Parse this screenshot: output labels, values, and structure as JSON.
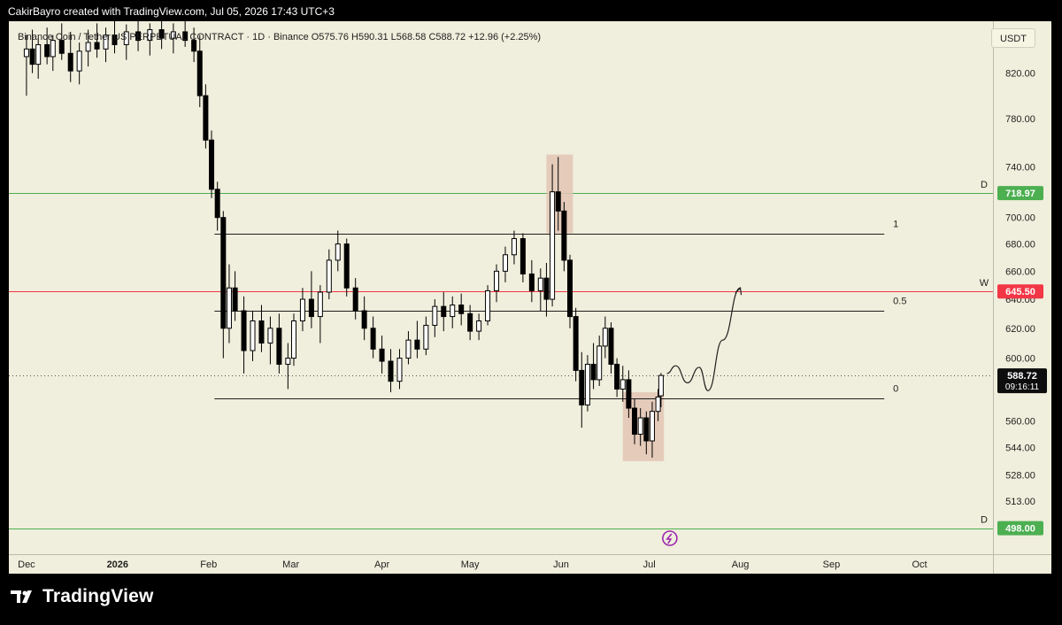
{
  "header": {
    "author_line": "CakirBayro created with TradingView.com, Jul 05, 2026 17:43 UTC+3"
  },
  "symbol_info": "Binance Coin / Tether US PERPETUAL CONTRACT · 1D · Binance  O575.76  H590.31  L568.58  C588.72  +12.96 (+2.25%)",
  "currency_button": "USDT",
  "footer": {
    "logo_text": "TradingView"
  },
  "colors": {
    "background": "#f0eedc",
    "candles": "#000000",
    "green_level": "#4caf50",
    "red_level": "#f23645",
    "highlight_box": "#e3c4b4",
    "emoji_purple": "#9c27b0"
  },
  "chart_data": {
    "type": "candlestick",
    "symbol": "Binance Coin / Tether US PERPETUAL CONTRACT",
    "interval": "1D",
    "exchange": "Binance",
    "ohlc_last": {
      "open": 575.76,
      "high": 590.31,
      "low": 568.58,
      "close": 588.72,
      "change": 12.96,
      "change_pct": "+2.25%"
    },
    "y_axis": {
      "scale": "log",
      "ticks": [
        "820.00",
        "780.00",
        "740.00",
        "700.00",
        "680.00",
        "660.00",
        "640.00",
        "620.00",
        "600.00",
        "560.00",
        "544.00",
        "528.00",
        "513.00"
      ],
      "range": [
        484,
        868
      ]
    },
    "x_axis": {
      "ticks": [
        "Dec",
        "2026",
        "Feb",
        "Mar",
        "Apr",
        "May",
        "Jun",
        "Jul",
        "Aug",
        "Sep",
        "Oct"
      ],
      "range": [
        "2025-11-25",
        "2026-10-26"
      ]
    },
    "price_labels": [
      {
        "label": "D",
        "value": 718.97,
        "text": "718.97",
        "color": "#4caf50"
      },
      {
        "label": "W",
        "value": 645.5,
        "text": "645.50",
        "color": "#f23645"
      },
      {
        "label": "D",
        "value": 498.0,
        "text": "498.00",
        "color": "#4caf50"
      }
    ],
    "last_price": {
      "value": 588.72,
      "text": "588.72",
      "countdown": "09:16:11"
    },
    "fib_levels": [
      {
        "label": "1",
        "value": 688
      },
      {
        "label": "0.5",
        "value": 632
      },
      {
        "label": "0",
        "value": 574
      }
    ],
    "fib_range": [
      "2026-02-03",
      "2026-09-19"
    ],
    "highlight_boxes": [
      {
        "from": "2026-05-27",
        "to": "2026-06-05",
        "low": 688,
        "high": 750
      },
      {
        "from": "2026-06-22",
        "to": "2026-07-06",
        "low": 536,
        "high": 578
      }
    ],
    "projection": [
      [
        "2026-07-07",
        590
      ],
      [
        "2026-07-10",
        595
      ],
      [
        "2026-07-14",
        584
      ],
      [
        "2026-07-18",
        594
      ],
      [
        "2026-07-21",
        579
      ],
      [
        "2026-07-26",
        612
      ],
      [
        "2026-08-01",
        648
      ]
    ],
    "candles": [
      {
        "x": "2025-12-01",
        "o": 835,
        "h": 855,
        "l": 800,
        "c": 842
      },
      {
        "x": "2025-12-03",
        "o": 842,
        "h": 860,
        "l": 820,
        "c": 828
      },
      {
        "x": "2025-12-05",
        "o": 828,
        "h": 852,
        "l": 815,
        "c": 846
      },
      {
        "x": "2025-12-08",
        "o": 846,
        "h": 862,
        "l": 828,
        "c": 835
      },
      {
        "x": "2025-12-10",
        "o": 835,
        "h": 855,
        "l": 822,
        "c": 850
      },
      {
        "x": "2025-12-13",
        "o": 850,
        "h": 866,
        "l": 832,
        "c": 838
      },
      {
        "x": "2025-12-16",
        "o": 838,
        "h": 858,
        "l": 812,
        "c": 822
      },
      {
        "x": "2025-12-19",
        "o": 822,
        "h": 848,
        "l": 810,
        "c": 840
      },
      {
        "x": "2025-12-22",
        "o": 840,
        "h": 860,
        "l": 826,
        "c": 848
      },
      {
        "x": "2025-12-25",
        "o": 848,
        "h": 866,
        "l": 834,
        "c": 842
      },
      {
        "x": "2025-12-28",
        "o": 842,
        "h": 862,
        "l": 830,
        "c": 855
      },
      {
        "x": "2025-12-31",
        "o": 855,
        "h": 868,
        "l": 838,
        "c": 846
      },
      {
        "x": "2026-01-04",
        "o": 846,
        "h": 865,
        "l": 832,
        "c": 858
      },
      {
        "x": "2026-01-08",
        "o": 858,
        "h": 868,
        "l": 840,
        "c": 850
      },
      {
        "x": "2026-01-12",
        "o": 850,
        "h": 866,
        "l": 836,
        "c": 860
      },
      {
        "x": "2026-01-16",
        "o": 860,
        "h": 868,
        "l": 842,
        "c": 852
      },
      {
        "x": "2026-01-20",
        "o": 852,
        "h": 866,
        "l": 838,
        "c": 858
      },
      {
        "x": "2026-01-24",
        "o": 858,
        "h": 868,
        "l": 844,
        "c": 850
      },
      {
        "x": "2026-01-27",
        "o": 850,
        "h": 862,
        "l": 830,
        "c": 840
      },
      {
        "x": "2026-01-29",
        "o": 840,
        "h": 855,
        "l": 790,
        "c": 800
      },
      {
        "x": "2026-01-31",
        "o": 800,
        "h": 810,
        "l": 755,
        "c": 762
      },
      {
        "x": "2026-02-02",
        "o": 762,
        "h": 770,
        "l": 715,
        "c": 722
      },
      {
        "x": "2026-02-04",
        "o": 722,
        "h": 728,
        "l": 690,
        "c": 700
      },
      {
        "x": "2026-02-06",
        "o": 700,
        "h": 705,
        "l": 600,
        "c": 620
      },
      {
        "x": "2026-02-08",
        "o": 620,
        "h": 665,
        "l": 610,
        "c": 648
      },
      {
        "x": "2026-02-10",
        "o": 648,
        "h": 660,
        "l": 625,
        "c": 632
      },
      {
        "x": "2026-02-13",
        "o": 632,
        "h": 642,
        "l": 590,
        "c": 605
      },
      {
        "x": "2026-02-16",
        "o": 605,
        "h": 632,
        "l": 598,
        "c": 625
      },
      {
        "x": "2026-02-19",
        "o": 625,
        "h": 636,
        "l": 604,
        "c": 610
      },
      {
        "x": "2026-02-22",
        "o": 610,
        "h": 628,
        "l": 596,
        "c": 620
      },
      {
        "x": "2026-02-25",
        "o": 620,
        "h": 630,
        "l": 590,
        "c": 596
      },
      {
        "x": "2026-02-28",
        "o": 596,
        "h": 610,
        "l": 580,
        "c": 600
      },
      {
        "x": "2026-03-02",
        "o": 600,
        "h": 630,
        "l": 595,
        "c": 625
      },
      {
        "x": "2026-03-05",
        "o": 625,
        "h": 648,
        "l": 618,
        "c": 640
      },
      {
        "x": "2026-03-08",
        "o": 640,
        "h": 660,
        "l": 620,
        "c": 628
      },
      {
        "x": "2026-03-11",
        "o": 628,
        "h": 650,
        "l": 610,
        "c": 645
      },
      {
        "x": "2026-03-14",
        "o": 645,
        "h": 676,
        "l": 640,
        "c": 668
      },
      {
        "x": "2026-03-17",
        "o": 668,
        "h": 690,
        "l": 660,
        "c": 680
      },
      {
        "x": "2026-03-20",
        "o": 680,
        "h": 684,
        "l": 642,
        "c": 648
      },
      {
        "x": "2026-03-23",
        "o": 648,
        "h": 655,
        "l": 626,
        "c": 632
      },
      {
        "x": "2026-03-26",
        "o": 632,
        "h": 642,
        "l": 612,
        "c": 620
      },
      {
        "x": "2026-03-29",
        "o": 620,
        "h": 628,
        "l": 600,
        "c": 606
      },
      {
        "x": "2026-04-01",
        "o": 606,
        "h": 615,
        "l": 590,
        "c": 598
      },
      {
        "x": "2026-04-04",
        "o": 598,
        "h": 606,
        "l": 578,
        "c": 585
      },
      {
        "x": "2026-04-07",
        "o": 585,
        "h": 606,
        "l": 580,
        "c": 600
      },
      {
        "x": "2026-04-10",
        "o": 600,
        "h": 618,
        "l": 596,
        "c": 612
      },
      {
        "x": "2026-04-13",
        "o": 612,
        "h": 625,
        "l": 600,
        "c": 606
      },
      {
        "x": "2026-04-16",
        "o": 606,
        "h": 628,
        "l": 602,
        "c": 622
      },
      {
        "x": "2026-04-19",
        "o": 622,
        "h": 640,
        "l": 614,
        "c": 635
      },
      {
        "x": "2026-04-22",
        "o": 635,
        "h": 645,
        "l": 618,
        "c": 628
      },
      {
        "x": "2026-04-25",
        "o": 628,
        "h": 642,
        "l": 620,
        "c": 636
      },
      {
        "x": "2026-04-28",
        "o": 636,
        "h": 644,
        "l": 622,
        "c": 630
      },
      {
        "x": "2026-05-01",
        "o": 630,
        "h": 636,
        "l": 612,
        "c": 618
      },
      {
        "x": "2026-05-04",
        "o": 618,
        "h": 630,
        "l": 612,
        "c": 625
      },
      {
        "x": "2026-05-07",
        "o": 625,
        "h": 650,
        "l": 622,
        "c": 646
      },
      {
        "x": "2026-05-10",
        "o": 646,
        "h": 665,
        "l": 638,
        "c": 660
      },
      {
        "x": "2026-05-13",
        "o": 660,
        "h": 678,
        "l": 652,
        "c": 672
      },
      {
        "x": "2026-05-16",
        "o": 672,
        "h": 690,
        "l": 665,
        "c": 684
      },
      {
        "x": "2026-05-19",
        "o": 684,
        "h": 688,
        "l": 652,
        "c": 658
      },
      {
        "x": "2026-05-22",
        "o": 658,
        "h": 668,
        "l": 638,
        "c": 646
      },
      {
        "x": "2026-05-25",
        "o": 646,
        "h": 662,
        "l": 632,
        "c": 655
      },
      {
        "x": "2026-05-27",
        "o": 655,
        "h": 666,
        "l": 628,
        "c": 640
      },
      {
        "x": "2026-05-29",
        "o": 640,
        "h": 742,
        "l": 635,
        "c": 720
      },
      {
        "x": "2026-05-31",
        "o": 720,
        "h": 748,
        "l": 690,
        "c": 705
      },
      {
        "x": "2026-06-02",
        "o": 705,
        "h": 712,
        "l": 660,
        "c": 668
      },
      {
        "x": "2026-06-04",
        "o": 668,
        "h": 672,
        "l": 620,
        "c": 628
      },
      {
        "x": "2026-06-06",
        "o": 628,
        "h": 634,
        "l": 585,
        "c": 592
      },
      {
        "x": "2026-06-08",
        "o": 592,
        "h": 604,
        "l": 556,
        "c": 570
      },
      {
        "x": "2026-06-10",
        "o": 570,
        "h": 602,
        "l": 566,
        "c": 596
      },
      {
        "x": "2026-06-12",
        "o": 596,
        "h": 610,
        "l": 580,
        "c": 586
      },
      {
        "x": "2026-06-14",
        "o": 586,
        "h": 615,
        "l": 582,
        "c": 608
      },
      {
        "x": "2026-06-16",
        "o": 608,
        "h": 628,
        "l": 600,
        "c": 620
      },
      {
        "x": "2026-06-18",
        "o": 620,
        "h": 624,
        "l": 590,
        "c": 596
      },
      {
        "x": "2026-06-20",
        "o": 596,
        "h": 600,
        "l": 575,
        "c": 580
      },
      {
        "x": "2026-06-22",
        "o": 580,
        "h": 595,
        "l": 572,
        "c": 586
      },
      {
        "x": "2026-06-24",
        "o": 586,
        "h": 592,
        "l": 562,
        "c": 568
      },
      {
        "x": "2026-06-26",
        "o": 568,
        "h": 574,
        "l": 546,
        "c": 552
      },
      {
        "x": "2026-06-28",
        "o": 552,
        "h": 568,
        "l": 545,
        "c": 562
      },
      {
        "x": "2026-06-30",
        "o": 562,
        "h": 566,
        "l": 540,
        "c": 548
      },
      {
        "x": "2026-07-02",
        "o": 548,
        "h": 572,
        "l": 538,
        "c": 566
      },
      {
        "x": "2026-07-04",
        "o": 566,
        "h": 580,
        "l": 560,
        "c": 575
      },
      {
        "x": "2026-07-05",
        "o": 575.76,
        "h": 590.31,
        "l": 568.58,
        "c": 588.72
      }
    ]
  }
}
